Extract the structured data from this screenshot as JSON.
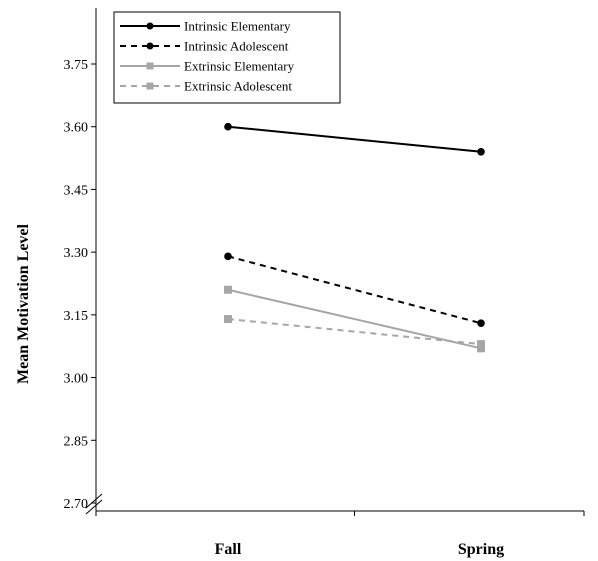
{
  "chart_data": {
    "type": "line",
    "title": "",
    "xlabel": "",
    "ylabel": "Mean Motivation Level",
    "categories": [
      "Fall",
      "Spring"
    ],
    "ylim": [
      2.7,
      3.75
    ],
    "yticks": [
      "2.70",
      "2.85",
      "3.00",
      "3.15",
      "3.30",
      "3.45",
      "3.60",
      "3.75"
    ],
    "y_axis_break": true,
    "grid": false,
    "legend_position": "top-left",
    "series": [
      {
        "name": "Intrinsic Elementary",
        "values": [
          3.6,
          3.54
        ],
        "color": "#000000",
        "dashed": false,
        "marker": "circle"
      },
      {
        "name": "Intrinsic Adolescent",
        "values": [
          3.29,
          3.13
        ],
        "color": "#000000",
        "dashed": true,
        "marker": "circle"
      },
      {
        "name": "Extrinsic Elementary",
        "values": [
          3.21,
          3.07
        ],
        "color": "#a6a6a6",
        "dashed": false,
        "marker": "square"
      },
      {
        "name": "Extrinsic Adolescent",
        "values": [
          3.14,
          3.08
        ],
        "color": "#a6a6a6",
        "dashed": true,
        "marker": "square"
      }
    ]
  }
}
